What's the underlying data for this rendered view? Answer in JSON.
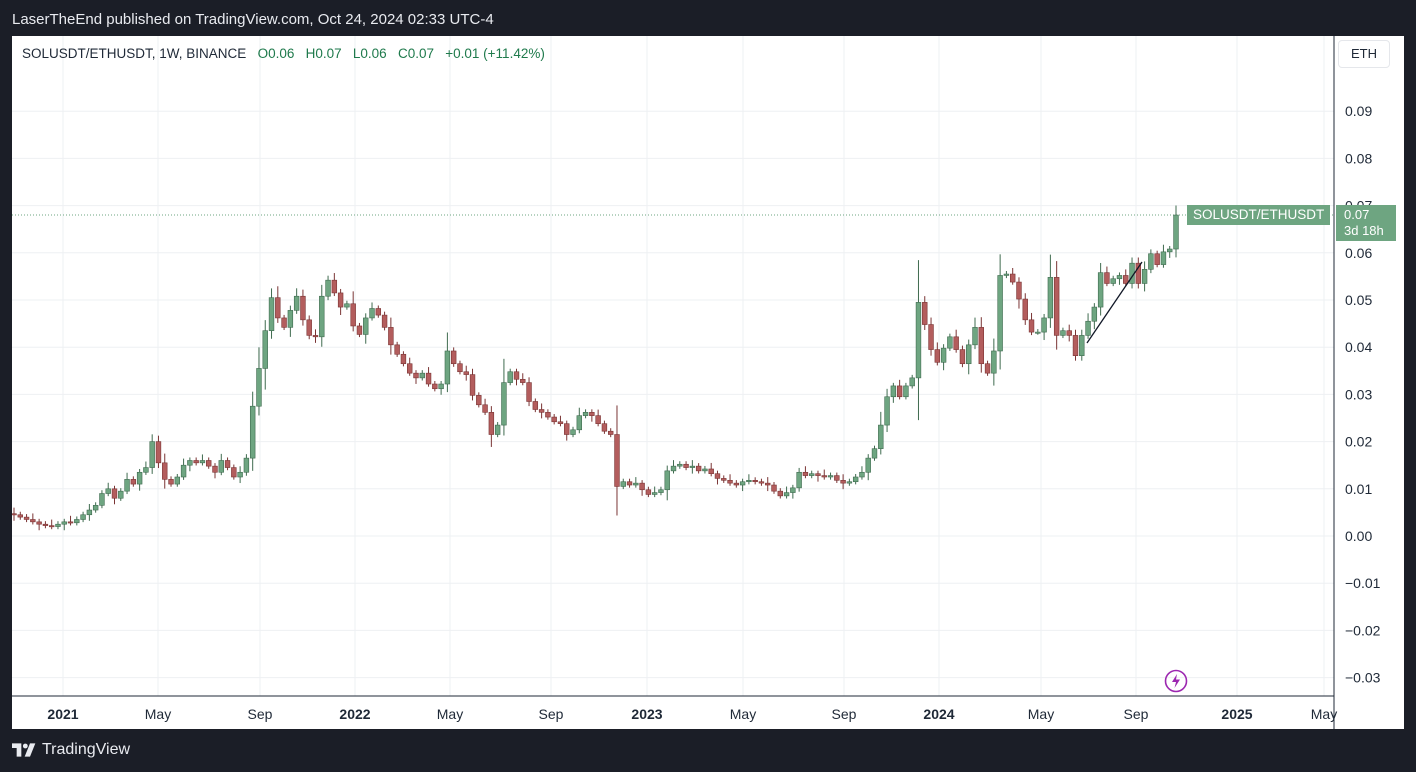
{
  "header": {
    "published_line": "LaserTheEnd published on TradingView.com, Oct 24, 2024 02:33 UTC-4"
  },
  "legend": {
    "symbol": "SOLUSDT/ETHUSDT, 1W, BINANCE",
    "open": "O0.06",
    "high": "H0.07",
    "low": "L0.06",
    "close": "C0.07",
    "change": "+0.01 (+11.42%)"
  },
  "currency_button": "ETH",
  "price_tag": {
    "symbol": "SOLUSDT/ETHUSDT",
    "price": "0.07",
    "countdown": "3d 18h"
  },
  "footer": {
    "brand": "TradingView"
  },
  "colors": {
    "up": "#6ea581",
    "down": "#b35d5d",
    "grid": "#eef0f3",
    "frame": "#1b1e27",
    "accent_purple": "#9c27b0"
  },
  "icons": [
    "tradingview-logo-icon",
    "lightning-bolt-icon",
    "trendline-drawing"
  ],
  "chart_data": {
    "type": "candlestick",
    "title": "SOLUSDT/ETHUSDT, 1W, BINANCE",
    "ylim": [
      -0.035,
      0.1
    ],
    "y_ticks": [
      "0.09",
      "0.08",
      "0.07",
      "0.06",
      "0.05",
      "0.04",
      "0.03",
      "0.02",
      "0.01",
      "0.00",
      "−0.01",
      "−0.02",
      "−0.03"
    ],
    "x_ticks": [
      "2021",
      "May",
      "Sep",
      "2022",
      "May",
      "Sep",
      "2023",
      "May",
      "Sep",
      "2024",
      "May",
      "Sep",
      "2025",
      "May"
    ],
    "grid": true,
    "last_price": 0.068,
    "series": [
      {
        "name": "SOLUSDT/ETHUSDT",
        "close": [
          0.0045,
          0.004,
          0.0035,
          0.003,
          0.0025,
          0.0022,
          0.002,
          0.0025,
          0.003,
          0.0028,
          0.0035,
          0.0045,
          0.0055,
          0.0065,
          0.009,
          0.01,
          0.008,
          0.0095,
          0.012,
          0.011,
          0.0135,
          0.0145,
          0.02,
          0.0155,
          0.012,
          0.011,
          0.0125,
          0.015,
          0.016,
          0.0155,
          0.016,
          0.0148,
          0.0135,
          0.016,
          0.0145,
          0.0125,
          0.0135,
          0.0165,
          0.0275,
          0.0355,
          0.0435,
          0.0505,
          0.0462,
          0.0442,
          0.0478,
          0.0508,
          0.0458,
          0.0425,
          0.0422,
          0.0508,
          0.0542,
          0.0515,
          0.0485,
          0.0492,
          0.0445,
          0.0427,
          0.0462,
          0.0482,
          0.0468,
          0.0442,
          0.0405,
          0.0385,
          0.0365,
          0.0345,
          0.0335,
          0.0345,
          0.0322,
          0.0312,
          0.0322,
          0.0392,
          0.0365,
          0.0348,
          0.0342,
          0.0298,
          0.0278,
          0.0262,
          0.0215,
          0.0235,
          0.0325,
          0.0348,
          0.0332,
          0.0325,
          0.0285,
          0.0268,
          0.0262,
          0.0252,
          0.0242,
          0.0238,
          0.0215,
          0.0225,
          0.0255,
          0.0262,
          0.0255,
          0.0238,
          0.0222,
          0.0215,
          0.0105,
          0.0115,
          0.0108,
          0.0112,
          0.0098,
          0.0088,
          0.0092,
          0.0098,
          0.0138,
          0.0148,
          0.0152,
          0.0145,
          0.0148,
          0.0138,
          0.0142,
          0.0132,
          0.0122,
          0.0118,
          0.0112,
          0.0108,
          0.0115,
          0.0118,
          0.0115,
          0.0112,
          0.0108,
          0.0095,
          0.0085,
          0.0092,
          0.0102,
          0.0135,
          0.0128,
          0.0132,
          0.0128,
          0.0125,
          0.0128,
          0.0118,
          0.0112,
          0.0115,
          0.0125,
          0.0135,
          0.0165,
          0.0185,
          0.0235,
          0.0295,
          0.0318,
          0.0295,
          0.0318,
          0.0335,
          0.0495,
          0.0448,
          0.0395,
          0.0368,
          0.0398,
          0.0422,
          0.0395,
          0.0365,
          0.0405,
          0.0442,
          0.0365,
          0.0345,
          0.0392,
          0.0552,
          0.0555,
          0.0538,
          0.0502,
          0.0458,
          0.0432,
          0.0432,
          0.0462,
          0.0548,
          0.0425,
          0.0435,
          0.0425,
          0.0382,
          0.0425,
          0.0455,
          0.0485,
          0.0558,
          0.0535,
          0.0545,
          0.0552,
          0.0535,
          0.0578,
          0.0535,
          0.0565,
          0.0598,
          0.0575,
          0.0602,
          0.0608,
          0.068
        ]
      }
    ]
  }
}
